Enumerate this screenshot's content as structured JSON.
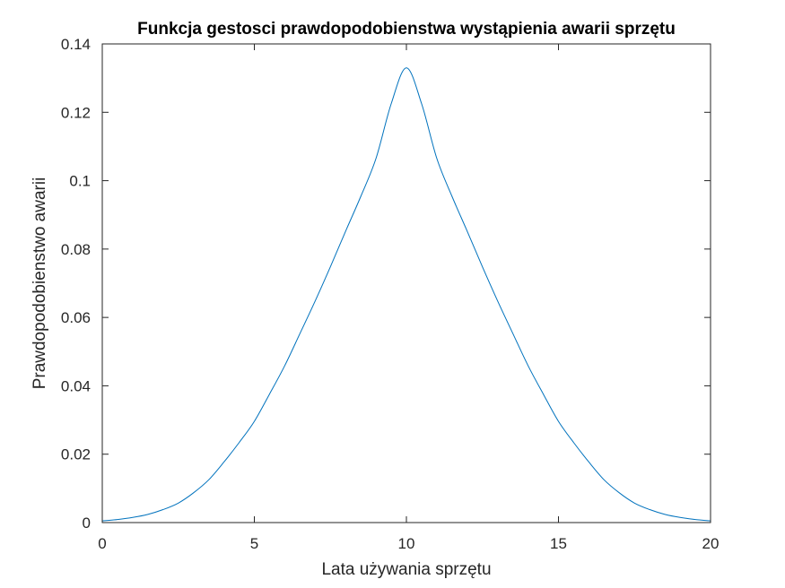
{
  "chart_data": {
    "type": "line",
    "title": "Funkcja gestosci prawdopodobienstwa wystąpienia awarii sprzętu",
    "xlabel": "Lata używania sprzętu",
    "ylabel": "Prawdopodobienstwo awarii",
    "xlim": [
      0,
      20
    ],
    "ylim": [
      0,
      0.14
    ],
    "xticks": [
      0,
      5,
      10,
      15,
      20
    ],
    "xtick_labels": [
      "0",
      "5",
      "10",
      "15",
      "20"
    ],
    "yticks": [
      0,
      0.02,
      0.04,
      0.06,
      0.08,
      0.1,
      0.12,
      0.14
    ],
    "ytick_labels": [
      "0",
      "0.02",
      "0.04",
      "0.06",
      "0.08",
      "0.1",
      "0.12",
      "0.14"
    ],
    "grid": false,
    "box": true,
    "series": [
      {
        "color": "#0072BD",
        "x": [
          0,
          0.5,
          1,
          1.5,
          2,
          2.5,
          3,
          3.5,
          4,
          4.5,
          5,
          5.5,
          6,
          6.5,
          7,
          7.5,
          8,
          8.5,
          9,
          9.5,
          10,
          10.5,
          11,
          11.5,
          12,
          12.5,
          13,
          13.5,
          14,
          14.5,
          15,
          15.5,
          16,
          16.5,
          17,
          17.5,
          18,
          18.5,
          19,
          19.5,
          20
        ],
        "y": [
          0.0005,
          0.0009,
          0.0015,
          0.0024,
          0.0038,
          0.0057,
          0.0087,
          0.0125,
          0.0177,
          0.0234,
          0.0296,
          0.0376,
          0.0459,
          0.0553,
          0.0648,
          0.0748,
          0.0852,
          0.0954,
          0.1065,
          0.1225,
          0.133,
          0.1225,
          0.1065,
          0.0954,
          0.0852,
          0.0748,
          0.0648,
          0.0553,
          0.0459,
          0.0376,
          0.0296,
          0.0234,
          0.0177,
          0.0125,
          0.0087,
          0.0057,
          0.0038,
          0.0024,
          0.0015,
          0.0009,
          0.0005
        ]
      }
    ]
  }
}
